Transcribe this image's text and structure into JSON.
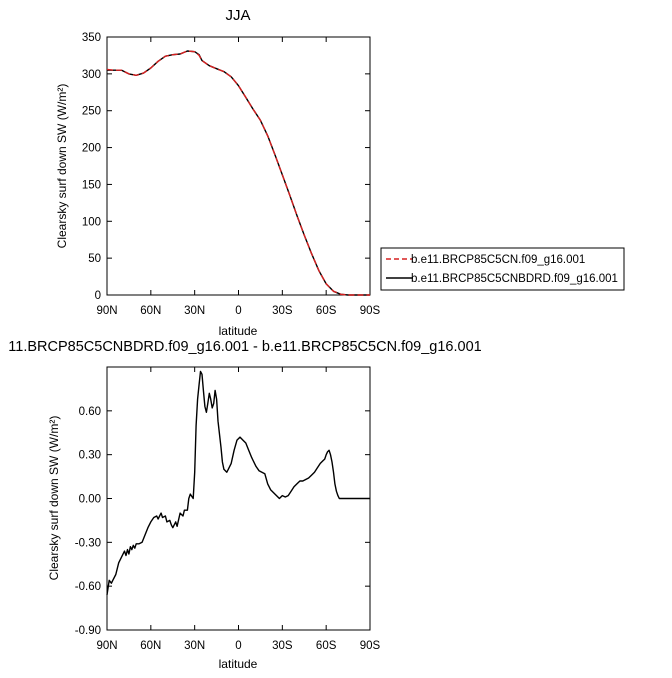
{
  "chart_data": [
    {
      "type": "line",
      "title": "JJA",
      "xlabel": "latitude",
      "ylabel": "Clearsky surf down SW (W/m²)",
      "xlim": [
        90,
        -90
      ],
      "ylim": [
        0,
        350
      ],
      "x_ticks": [
        90,
        60,
        30,
        0,
        -30,
        -60,
        -90
      ],
      "x_tick_labels": [
        "90N",
        "60N",
        "30N",
        "0",
        "30S",
        "60S",
        "90S"
      ],
      "y_ticks": [
        0,
        50,
        100,
        150,
        200,
        250,
        300,
        350
      ],
      "y_tick_labels": [
        "0",
        "50",
        "100",
        "150",
        "200",
        "250",
        "300",
        "350"
      ],
      "legend_position": "right",
      "series": [
        {
          "name": "b.e11.BRCP85C5CN.f09_g16.001",
          "color": "#d62020",
          "dash": "dashed",
          "x": [
            90,
            85,
            80,
            75,
            70,
            65,
            60,
            55,
            50,
            45,
            40,
            35,
            30,
            27,
            25,
            20,
            15,
            10,
            5,
            0,
            -5,
            -10,
            -15,
            -20,
            -25,
            -30,
            -35,
            -40,
            -45,
            -50,
            -55,
            -60,
            -65,
            -70,
            -75,
            -80,
            -85,
            -90
          ],
          "y": [
            306,
            305,
            305,
            300,
            298,
            301,
            308,
            317,
            324,
            326,
            327,
            331,
            330,
            325,
            318,
            311,
            307,
            303,
            296,
            284,
            268,
            252,
            237,
            216,
            190,
            163,
            136,
            108,
            81,
            56,
            33,
            15,
            5,
            1,
            0,
            0,
            0,
            0
          ]
        },
        {
          "name": "b.e11.BRCP85C5CNBDRD.f09_g16.001",
          "color": "#000000",
          "dash": "solid",
          "x": [
            90,
            85,
            80,
            75,
            70,
            65,
            60,
            55,
            50,
            45,
            40,
            35,
            30,
            27,
            25,
            20,
            15,
            10,
            5,
            0,
            -5,
            -10,
            -15,
            -20,
            -25,
            -30,
            -35,
            -40,
            -45,
            -50,
            -55,
            -60,
            -65,
            -70,
            -75,
            -80,
            -85,
            -90
          ],
          "y": [
            305,
            305,
            305,
            300,
            298,
            301,
            308,
            317,
            324,
            326,
            327,
            331,
            330,
            326,
            318,
            311,
            307,
            303,
            296,
            284,
            268,
            252,
            237,
            216,
            190,
            163,
            136,
            108,
            81,
            56,
            33,
            15,
            5,
            1,
            0,
            0,
            0,
            0
          ]
        }
      ]
    },
    {
      "type": "line",
      "title": "11.BRCP85C5CNBDRD.f09_g16.001 - b.e11.BRCP85C5CN.f09_g16.001",
      "xlabel": "latitude",
      "ylabel": "Clearsky surf down SW (W/m²)",
      "xlim": [
        90,
        -90
      ],
      "ylim": [
        -0.9,
        0.9
      ],
      "x_ticks": [
        90,
        60,
        30,
        0,
        -30,
        -60,
        -90
      ],
      "x_tick_labels": [
        "90N",
        "60N",
        "30N",
        "0",
        "30S",
        "60S",
        "90S"
      ],
      "y_ticks": [
        -0.9,
        -0.6,
        -0.3,
        0.0,
        0.3,
        0.6
      ],
      "y_tick_labels": [
        "-0.90",
        "-0.60",
        "-0.30",
        "0.00",
        "0.30",
        "0.60"
      ],
      "series": [
        {
          "color": "#000000",
          "x": [
            90,
            88.5,
            87,
            86,
            84,
            82,
            80,
            78,
            77,
            76,
            75,
            74,
            73,
            72,
            71,
            70,
            68,
            66,
            64,
            62,
            60,
            58,
            56,
            55,
            53,
            52,
            50,
            49,
            47,
            46,
            45,
            43,
            42,
            40,
            38,
            37,
            35,
            34,
            33,
            31,
            30,
            29,
            28,
            27,
            26,
            25,
            24,
            23,
            22,
            21,
            20,
            19,
            18,
            17,
            16,
            15,
            14,
            12,
            11,
            10,
            8,
            7,
            5,
            3,
            1,
            -1,
            -3,
            -5,
            -7,
            -9,
            -10,
            -12,
            -14,
            -16,
            -18,
            -20,
            -22,
            -24,
            -26,
            -28,
            -30,
            -32,
            -34,
            -36,
            -38,
            -40,
            -42,
            -44,
            -46,
            -48,
            -50,
            -52,
            -54,
            -56,
            -58,
            -59,
            -60,
            -61,
            -62,
            -63,
            -64,
            -65,
            -66,
            -67,
            -68,
            -69,
            -70,
            -72,
            -74,
            -76,
            -78,
            -80,
            -82,
            -84,
            -86,
            -88,
            -90
          ],
          "y": [
            -0.66,
            -0.56,
            -0.58,
            -0.56,
            -0.52,
            -0.44,
            -0.4,
            -0.36,
            -0.39,
            -0.35,
            -0.38,
            -0.33,
            -0.35,
            -0.32,
            -0.34,
            -0.31,
            -0.31,
            -0.3,
            -0.25,
            -0.2,
            -0.16,
            -0.13,
            -0.12,
            -0.14,
            -0.1,
            -0.13,
            -0.12,
            -0.16,
            -0.15,
            -0.18,
            -0.2,
            -0.16,
            -0.19,
            -0.1,
            -0.12,
            -0.08,
            -0.08,
            0.0,
            0.03,
            0.0,
            0.18,
            0.5,
            0.68,
            0.78,
            0.87,
            0.85,
            0.74,
            0.63,
            0.59,
            0.65,
            0.72,
            0.68,
            0.62,
            0.65,
            0.74,
            0.68,
            0.53,
            0.35,
            0.25,
            0.2,
            0.18,
            0.2,
            0.24,
            0.33,
            0.4,
            0.42,
            0.4,
            0.38,
            0.33,
            0.28,
            0.26,
            0.22,
            0.19,
            0.18,
            0.17,
            0.1,
            0.06,
            0.04,
            0.02,
            0.0,
            0.02,
            0.01,
            0.02,
            0.05,
            0.08,
            0.1,
            0.12,
            0.12,
            0.13,
            0.14,
            0.16,
            0.18,
            0.21,
            0.24,
            0.26,
            0.27,
            0.3,
            0.32,
            0.33,
            0.3,
            0.25,
            0.18,
            0.1,
            0.05,
            0.02,
            0.0,
            0.0,
            0.0,
            0.0,
            0.0,
            0.0,
            0.0,
            0.0,
            0.0,
            0.0,
            0.0,
            0.0
          ]
        }
      ]
    }
  ]
}
